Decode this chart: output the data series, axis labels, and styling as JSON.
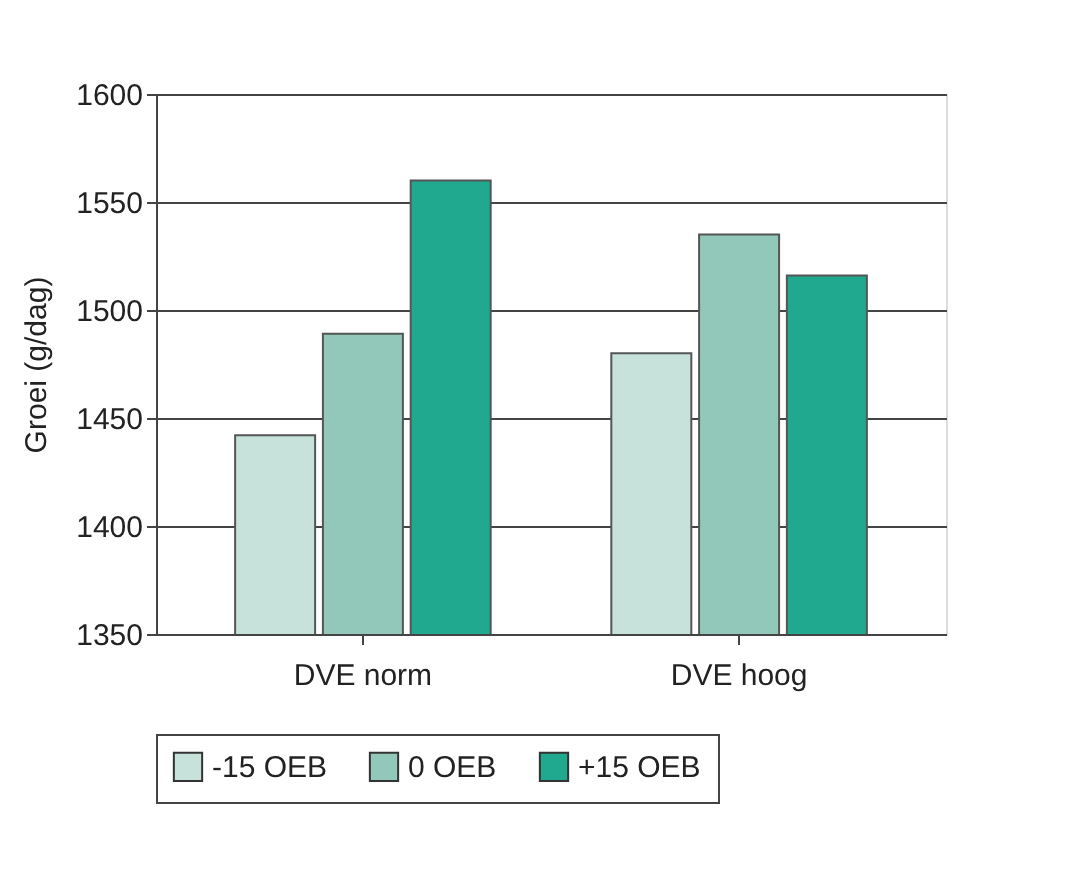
{
  "chart_data": {
    "type": "bar",
    "ylabel": "Groei (g/dag)",
    "categories": [
      "DVE norm",
      "DVE hoog"
    ],
    "series": [
      {
        "name": "-15 OEB",
        "color": "#c6e2da",
        "values": [
          1442,
          1480
        ]
      },
      {
        "name": "0 OEB",
        "color": "#92c8b9",
        "values": [
          1489,
          1535
        ]
      },
      {
        "name": "+15 OEB",
        "color": "#20a98f",
        "values": [
          1560,
          1516
        ]
      }
    ],
    "ylim": [
      1350,
      1600
    ],
    "yticks": [
      1350,
      1400,
      1450,
      1500,
      1550,
      1600
    ],
    "grid": "y",
    "legend": "bottom"
  }
}
